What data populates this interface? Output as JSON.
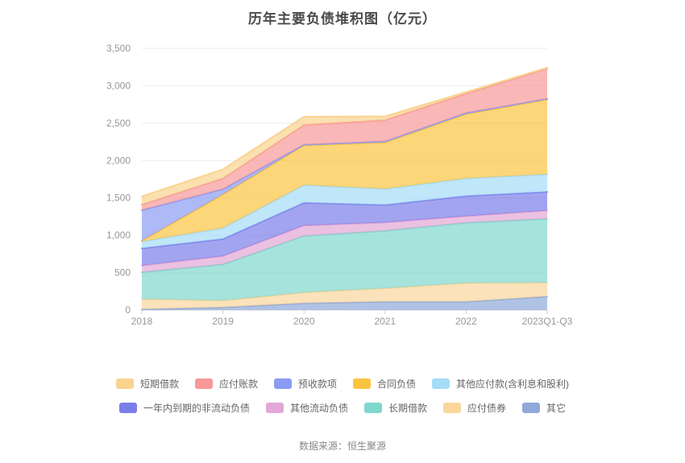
{
  "title": "历年主要负债堆积图（亿元）",
  "source": "数据来源：恒生聚源",
  "colors": {
    "title_text": "#4a4a4a",
    "axis_text": "#999999",
    "legend_text": "#666666",
    "source_text": "#888888",
    "grid_line": "#e9ecf3",
    "axis_line": "#cccccc"
  },
  "chart_data": {
    "type": "area",
    "stacked": true,
    "title": "历年主要负债堆积图（亿元）",
    "categories": [
      "2018",
      "2019",
      "2020",
      "2021",
      "2022",
      "2023Q1-Q3"
    ],
    "series": [
      {
        "name": "短期借款",
        "color": "#fad38f",
        "values": [
          110,
          120,
          110,
          50,
          20,
          10
        ]
      },
      {
        "name": "应付账款",
        "color": "#f89898",
        "values": [
          75,
          145,
          265,
          285,
          260,
          405
        ]
      },
      {
        "name": "预收款项",
        "color": "#8b9bf4",
        "values": [
          410,
          70,
          10,
          15,
          15,
          10
        ]
      },
      {
        "name": "合同负债",
        "color": "#fbc440",
        "values": [
          10,
          450,
          530,
          620,
          860,
          1000
        ]
      },
      {
        "name": "其他应付款(含利息和股利)",
        "color": "#a5dcf8",
        "values": [
          90,
          145,
          235,
          215,
          235,
          235
        ]
      },
      {
        "name": "一年内到期的非流动负债",
        "color": "#7a7ee8",
        "values": [
          230,
          230,
          305,
          235,
          270,
          250
        ]
      },
      {
        "name": "其他流动负债",
        "color": "#e2a7d6",
        "values": [
          90,
          110,
          140,
          110,
          90,
          110
        ]
      },
      {
        "name": "长期借款",
        "color": "#80d7cd",
        "values": [
          360,
          485,
          755,
          770,
          805,
          855
        ]
      },
      {
        "name": "应付债券",
        "color": "#fad69d",
        "values": [
          135,
          90,
          145,
          180,
          250,
          185
        ]
      },
      {
        "name": "其它",
        "color": "#90a9d9",
        "values": [
          10,
          35,
          90,
          110,
          110,
          180
        ]
      }
    ],
    "stack_order": "bottom-to-top is reverse of series list order",
    "totals": [
      1520,
      1880,
      2585,
      2590,
      2915,
      3240
    ],
    "ylim": [
      0,
      3500
    ],
    "y_tick_values": [
      0,
      500,
      1000,
      1500,
      2000,
      2500,
      3000,
      3500
    ],
    "y_tick_labels": [
      "0",
      "500",
      "1,000",
      "1,500",
      "2,000",
      "2,500",
      "3,000",
      "3,500"
    ],
    "grid": true,
    "legend_position": "bottom",
    "legend_rows": 2
  }
}
